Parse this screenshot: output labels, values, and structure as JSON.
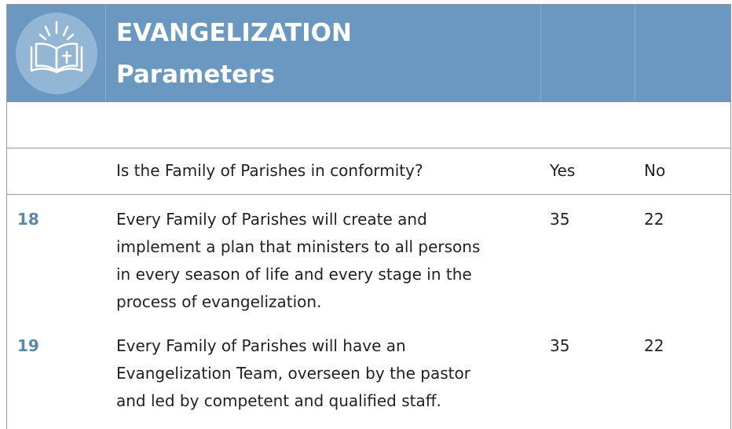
{
  "header": {
    "title": [
      "EVANGELIZATION",
      "Parameters"
    ]
  },
  "table": {
    "columns": [
      "Is the Family of Parishes in conformity?",
      "Yes",
      "No"
    ],
    "rows": [
      {
        "number": "18",
        "text": [
          "Every Family of Parishes will create and",
          "implement a plan that ministers to all persons",
          "in every season of life and every stage in the",
          "process of evangelization."
        ],
        "yes": 35,
        "no": 22
      },
      {
        "number": "19",
        "text": [
          "Every Family of Parishes will have an",
          "Evangelization Team, overseen by the pastor",
          "and led by competent and qualified staff."
        ],
        "yes": 35,
        "no": 22
      }
    ]
  }
}
